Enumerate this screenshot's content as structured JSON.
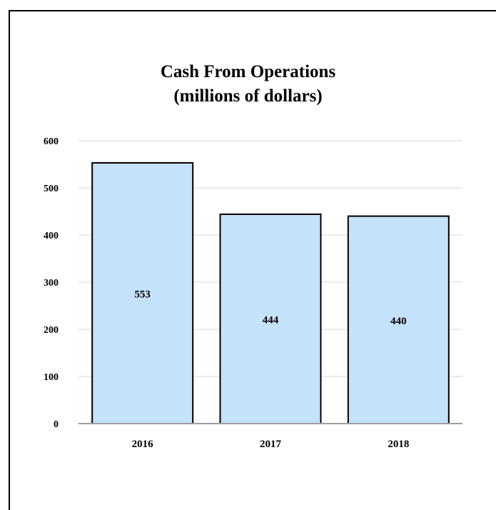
{
  "chart_data": {
    "type": "bar",
    "title": "Cash From Operations",
    "subtitle": "(millions of dollars)",
    "categories": [
      "2016",
      "2017",
      "2018"
    ],
    "values": [
      553,
      444,
      440
    ],
    "data_labels": [
      "553",
      "444",
      "440"
    ],
    "ylim": [
      0,
      600
    ],
    "yticks": [
      "0",
      "100",
      "200",
      "300",
      "400",
      "500",
      "600"
    ],
    "xlabel": "",
    "ylabel": "",
    "grid": true,
    "legend": "none",
    "colors": {
      "bar_fill": "#c4e2fb",
      "bar_stroke": "#000000",
      "grid": "#e3e3e3",
      "axis": "#9e9e9e"
    }
  }
}
